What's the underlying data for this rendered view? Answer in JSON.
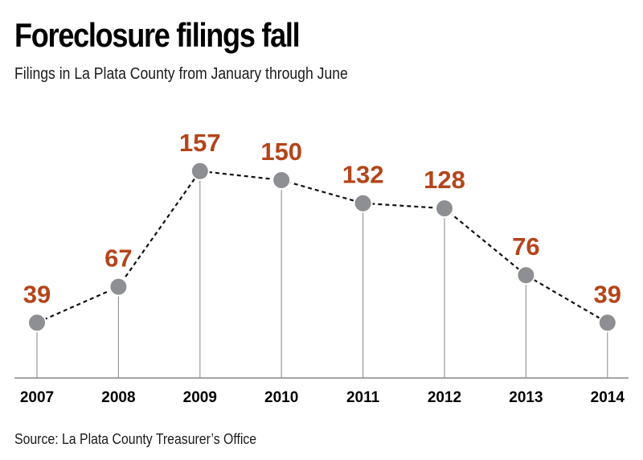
{
  "title": "Foreclosure filings fall",
  "subtitle": "Filings in La Plata County from January through June",
  "source": "Source: La Plata County Treasurer’s Office",
  "colors": {
    "value_label": "#b5441a",
    "marker_fill": "#8e8f92",
    "marker_stroke": "#ffffff",
    "line": "#111111",
    "drop_line": "#9a9a9a",
    "baseline": "#888888"
  },
  "chart_data": {
    "type": "line",
    "title": "Foreclosure filings fall",
    "subtitle": "Filings in La Plata County from January through June",
    "categories": [
      "2007",
      "2008",
      "2009",
      "2010",
      "2011",
      "2012",
      "2013",
      "2014"
    ],
    "values": [
      39,
      67,
      157,
      150,
      132,
      128,
      76,
      39
    ],
    "ylim": [
      -4,
      165
    ],
    "line_style": "dashed",
    "markers": "circle",
    "data_labels": true,
    "grid": false
  }
}
